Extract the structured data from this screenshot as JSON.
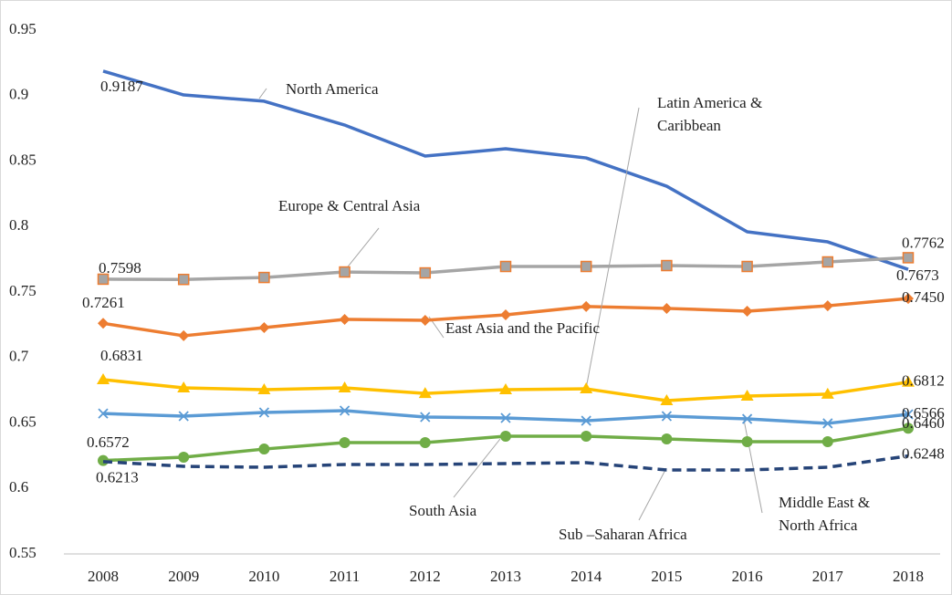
{
  "chart_data": {
    "type": "line",
    "categories": [
      "2008",
      "2009",
      "2010",
      "2011",
      "2012",
      "2013",
      "2014",
      "2015",
      "2016",
      "2017",
      "2018"
    ],
    "ylim": [
      0.55,
      0.95
    ],
    "yticks": [
      0.55,
      0.6,
      0.65,
      0.7,
      0.75,
      0.8,
      0.85,
      0.9,
      0.95
    ],
    "grid": false,
    "series": [
      {
        "name": "North America",
        "color": "#4472c4",
        "marker": null,
        "values": [
          0.9187,
          0.9005,
          0.8957,
          0.8775,
          0.8538,
          0.8594,
          0.8524,
          0.8308,
          0.796,
          0.7883,
          0.7673
        ],
        "value_labels": [
          "0.9187",
          null,
          null,
          null,
          null,
          null,
          null,
          null,
          null,
          null,
          "0.7673"
        ]
      },
      {
        "name": "Europe & Central Asia",
        "color": "#a5a5a5",
        "marker": "square",
        "marker_edge": "#ed7d31",
        "values": [
          0.7598,
          0.7596,
          0.7611,
          0.7653,
          0.7646,
          0.7695,
          0.7695,
          0.7702,
          0.7695,
          0.773,
          0.7762
        ],
        "value_labels": [
          "0.7598",
          null,
          null,
          null,
          null,
          null,
          null,
          null,
          null,
          null,
          "0.7762"
        ]
      },
      {
        "name": "East Asia and the Pacific",
        "color": "#ed7d31",
        "marker": "diamond",
        "values": [
          0.7261,
          0.7166,
          0.7228,
          0.7291,
          0.7284,
          0.7326,
          0.7389,
          0.7375,
          0.7354,
          0.7395,
          0.745
        ],
        "value_labels": [
          "0.7261",
          null,
          null,
          null,
          null,
          null,
          null,
          null,
          null,
          null,
          "0.7450"
        ]
      },
      {
        "name": "Latin America & Caribbean",
        "color": "#ffc000",
        "marker": "triangle",
        "values": [
          0.6831,
          0.6768,
          0.6754,
          0.6768,
          0.6726,
          0.6754,
          0.6761,
          0.6671,
          0.6706,
          0.672,
          0.6812
        ],
        "value_labels": [
          "0.6831",
          null,
          null,
          null,
          null,
          null,
          null,
          null,
          null,
          null,
          "0.6812"
        ]
      },
      {
        "name": "Middle East & North Africa",
        "color": "#5b9bd5",
        "marker": "x",
        "values": [
          0.6572,
          0.6552,
          0.658,
          0.6594,
          0.6545,
          0.6538,
          0.6517,
          0.6552,
          0.6531,
          0.6497,
          0.6566
        ],
        "value_labels": [
          "0.6572",
          null,
          null,
          null,
          null,
          null,
          null,
          null,
          null,
          null,
          "0.6566"
        ]
      },
      {
        "name": "South Asia",
        "color": "#70ad47",
        "marker": "circle",
        "values": [
          0.6213,
          0.6239,
          0.6301,
          0.635,
          0.635,
          0.6399,
          0.6399,
          0.6378,
          0.6357,
          0.6357,
          0.646
        ],
        "value_labels": [
          "0.6213",
          null,
          null,
          null,
          null,
          null,
          null,
          null,
          null,
          null,
          "0.6460"
        ]
      },
      {
        "name": "Sub –Saharan Africa",
        "color": "#264478",
        "marker": null,
        "dashed": true,
        "values": [
          0.6205,
          0.6169,
          0.6162,
          0.6183,
          0.6183,
          0.619,
          0.6197,
          0.6141,
          0.6141,
          0.6162,
          0.6248
        ],
        "value_labels": [
          null,
          null,
          null,
          null,
          null,
          null,
          null,
          null,
          null,
          null,
          "0.6248"
        ]
      }
    ]
  }
}
